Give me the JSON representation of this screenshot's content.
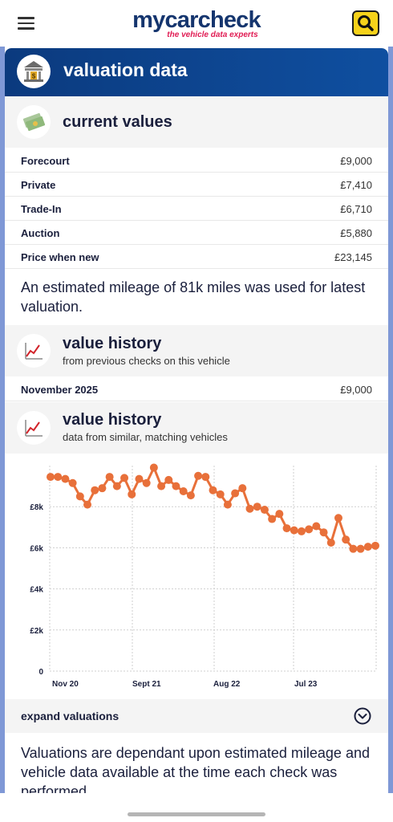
{
  "header": {
    "logo": "mycarcheck",
    "tagline": "the vehicle data experts"
  },
  "valuation": {
    "title": "valuation data",
    "current": {
      "title": "current values",
      "rows": [
        {
          "label": "Forecourt",
          "value": "£9,000"
        },
        {
          "label": "Private",
          "value": "£7,410"
        },
        {
          "label": "Trade-In",
          "value": "£6,710"
        },
        {
          "label": "Auction",
          "value": "£5,880"
        },
        {
          "label": "Price when new",
          "value": "£23,145"
        }
      ],
      "note": "An estimated mileage of 81k miles was used for latest valuation."
    },
    "history": {
      "title": "value history",
      "subtitle": "from previous checks on this vehicle",
      "row": {
        "label": "November 2025",
        "value": "£9,000"
      }
    },
    "similar": {
      "title": "value history",
      "subtitle": "data from similar, matching vehicles"
    },
    "expand_label": "expand valuations",
    "footer_note": "Valuations are dependant upon estimated mileage and vehicle data available at the time each check was performed"
  },
  "colors": {
    "brand_navy": "#15356e",
    "brand_pink": "#e01b53",
    "header_blue": "#0b3a7e",
    "series": "#e8703a",
    "search_yellow": "#f6d21a"
  },
  "chart_data": {
    "type": "line",
    "title": "",
    "xlabel": "",
    "ylabel": "",
    "ylim": [
      0,
      10000
    ],
    "y_ticks": [
      {
        "value": 0,
        "label": "0"
      },
      {
        "value": 2000,
        "label": "£2k"
      },
      {
        "value": 4000,
        "label": "£4k"
      },
      {
        "value": 6000,
        "label": "£6k"
      },
      {
        "value": 8000,
        "label": "£8k"
      }
    ],
    "x_ticks": [
      "Nov 20",
      "Sept 21",
      "Aug 22",
      "Jul 23"
    ],
    "grid": true,
    "series": [
      {
        "values": [
          9450,
          9450,
          9350,
          9150,
          8500,
          8100,
          8800,
          8900,
          9450,
          9000,
          9400,
          8600,
          9350,
          9150,
          9900,
          9000,
          9300,
          9000,
          8750,
          8550,
          9500,
          9450,
          8800,
          8600,
          8100,
          8650,
          8900,
          7900,
          8000,
          7850,
          7400,
          7650,
          6950,
          6850,
          6800,
          6900,
          7050,
          6750,
          6250,
          7450,
          6400,
          5950,
          5950,
          6050,
          6100
        ]
      }
    ]
  }
}
